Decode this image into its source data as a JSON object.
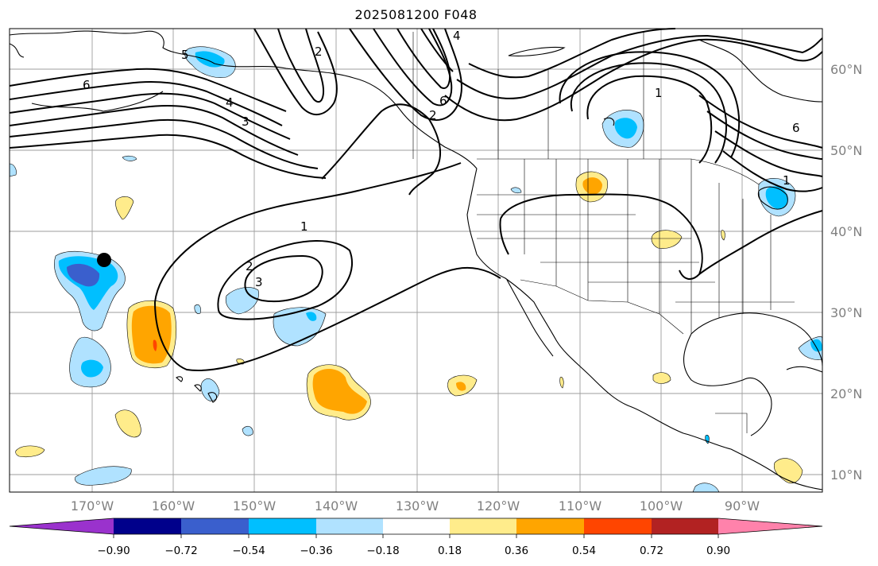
{
  "title": "2025081200 F048",
  "lat_labels": [
    "60°N",
    "50°N",
    "40°N",
    "30°N",
    "20°N",
    "10°N"
  ],
  "lon_labels": [
    "170°W",
    "160°W",
    "150°W",
    "140°W",
    "130°W",
    "120°W",
    "110°W",
    "100°W",
    "90°W"
  ],
  "colorbar": {
    "tick_labels": [
      "−0.90",
      "−0.72",
      "−0.54",
      "−0.36",
      "−0.18",
      "0.18",
      "0.36",
      "0.54",
      "0.72",
      "0.90"
    ],
    "colors": [
      "#9a32cd",
      "#00008b",
      "#3a5fcd",
      "#00bfff",
      "#b0e2ff",
      "#ffffff",
      "#ffec8b",
      "#ffa500",
      "#ff4500",
      "#b22222",
      "#ff82ab"
    ]
  },
  "contour_labels": [
    "6",
    "5",
    "4",
    "3",
    "2",
    "1",
    "4",
    "6",
    "2",
    "1",
    "6",
    "1",
    "2",
    "3"
  ],
  "colors": {
    "grid": "#9e9e9e",
    "axis_text": "#808080",
    "contour": "#000000",
    "marker": "#000000"
  },
  "legend_shades": {
    "light_blue": "#b0e2ff",
    "blue": "#00bfff",
    "dark_blue": "#3a5fcd",
    "yellow": "#ffec8b",
    "orange": "#ffa500",
    "red": "#ff4500"
  }
}
